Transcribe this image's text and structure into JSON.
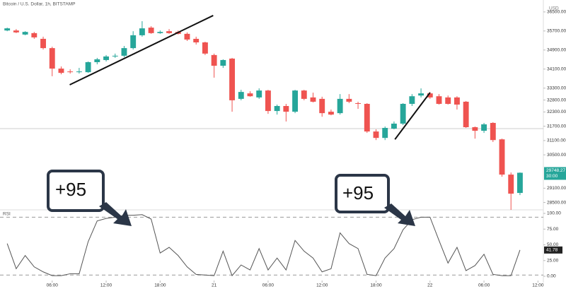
{
  "header": "Bitcoin / U.S. Dollar, 1h, BITSTAMP",
  "currency": "USD",
  "countdown": "30:00",
  "annotations": [
    {
      "text": "+95"
    },
    {
      "text": "+95"
    }
  ],
  "chart_data": [
    {
      "type": "candlestick",
      "up_color": "#26a69a",
      "down_color": "#ef5350",
      "x": [
        1,
        2,
        3,
        4,
        5,
        6,
        7,
        8,
        9,
        10,
        11,
        12,
        13,
        14,
        15,
        16,
        17,
        18,
        19,
        20,
        21,
        22,
        23,
        24,
        25,
        26,
        27,
        28,
        29,
        30,
        31,
        32,
        33,
        34,
        35,
        36,
        37,
        38,
        39,
        40,
        41,
        42,
        43,
        44,
        45,
        46,
        47,
        48,
        49,
        50,
        51,
        52,
        53,
        54,
        55,
        56,
        57,
        58
      ],
      "open": [
        35720,
        35720,
        35550,
        35610,
        35370,
        34980,
        34120,
        34000,
        33970,
        33970,
        34390,
        34480,
        34630,
        34660,
        34980,
        35520,
        35840,
        35610,
        35690,
        35660,
        35580,
        35370,
        35220,
        34690,
        34240,
        34540,
        32850,
        33080,
        32910,
        33200,
        32340,
        32550,
        32310,
        33200,
        32910,
        32850,
        32310,
        32250,
        32850,
        32670,
        32640,
        31480,
        31210,
        31600,
        31810,
        32640,
        32990,
        33080,
        32960,
        32910,
        32910,
        32730,
        31660,
        31510,
        31840,
        31150,
        29670,
        28900
      ],
      "high": [
        35840,
        35780,
        35690,
        35660,
        35460,
        35040,
        34210,
        34090,
        34150,
        34420,
        34570,
        34690,
        34750,
        35070,
        35690,
        36110,
        35900,
        35720,
        35780,
        35720,
        35640,
        35460,
        35250,
        34750,
        34510,
        34570,
        33230,
        33170,
        33290,
        33230,
        32610,
        32640,
        33230,
        33230,
        33110,
        32940,
        32400,
        33050,
        33050,
        32730,
        32670,
        31570,
        31690,
        31900,
        32670,
        33050,
        33290,
        33140,
        33050,
        32990,
        32960,
        32760,
        31690,
        31840,
        31870,
        31180,
        29760,
        29760
      ],
      "low": [
        35690,
        35610,
        35520,
        35370,
        34920,
        33800,
        33880,
        33910,
        33910,
        33940,
        34300,
        34420,
        34570,
        34600,
        34920,
        35460,
        35580,
        35580,
        35580,
        35550,
        35280,
        35130,
        34690,
        33740,
        34150,
        32310,
        32790,
        32940,
        32850,
        32220,
        32190,
        31900,
        32250,
        32790,
        32700,
        32100,
        32160,
        32190,
        32670,
        32430,
        31420,
        31120,
        31120,
        31570,
        31750,
        32550,
        32910,
        32850,
        32610,
        32610,
        32400,
        31630,
        31180,
        31420,
        31040,
        29580,
        28190,
        28810
      ],
      "close": [
        35810,
        35640,
        35660,
        35430,
        34980,
        34120,
        33940,
        33970,
        34000,
        34390,
        34510,
        34630,
        34660,
        34980,
        35520,
        35810,
        35610,
        35660,
        35610,
        35580,
        35340,
        35220,
        34750,
        34240,
        34480,
        32790,
        33140,
        32960,
        33200,
        32340,
        32550,
        32310,
        33200,
        32850,
        32730,
        32250,
        32190,
        32850,
        32730,
        32640,
        31480,
        31210,
        31630,
        31810,
        32640,
        32960,
        33080,
        32910,
        32640,
        32640,
        32610,
        31660,
        31510,
        31780,
        31120,
        29670,
        28870,
        29748.27
      ],
      "xlim": [
        0.2,
        60.6
      ],
      "xticks": [
        {
          "value": 6,
          "label": "06:00"
        },
        {
          "value": 12,
          "label": "12:00"
        },
        {
          "value": 18,
          "label": "18:00"
        },
        {
          "value": 24,
          "label": "21"
        },
        {
          "value": 30,
          "label": "06:00"
        },
        {
          "value": 36,
          "label": "12:00"
        },
        {
          "value": 42,
          "label": "18:00"
        },
        {
          "value": 48,
          "label": "22"
        },
        {
          "value": 54,
          "label": "06:00"
        },
        {
          "value": 60,
          "label": "12:00"
        }
      ],
      "ylim": [
        28190,
        37000
      ],
      "yticks": [
        {
          "value": 36500,
          "label": "36500.00"
        },
        {
          "value": 35700,
          "label": "35700.00"
        },
        {
          "value": 34900,
          "label": "34900.00"
        },
        {
          "value": 34100,
          "label": "34100.00"
        },
        {
          "value": 33300,
          "label": "33300.00"
        },
        {
          "value": 32800,
          "label": "32800.00"
        },
        {
          "value": 32300,
          "label": "32300.00"
        },
        {
          "value": 31700,
          "label": "31700.00"
        },
        {
          "value": 31100,
          "label": "31100.00"
        },
        {
          "value": 30500,
          "label": "30500.00"
        },
        {
          "value": 29100,
          "label": "29100.00"
        },
        {
          "value": 28500,
          "label": "28500.00"
        }
      ],
      "trend_lines": [
        {
          "x": [
            7.95,
            23.9
          ],
          "y": [
            33440,
            36350
          ]
        },
        {
          "x": [
            44.1,
            48.0
          ],
          "y": [
            31150,
            33110
          ]
        }
      ]
    },
    {
      "type": "line",
      "title": "RSI",
      "color": "#555555",
      "x": [
        1,
        2,
        3,
        4,
        5,
        6,
        7,
        8,
        9,
        10,
        11,
        12,
        13,
        14,
        15,
        16,
        17,
        18,
        19,
        20,
        21,
        22,
        23,
        24,
        25,
        26,
        27,
        28,
        29,
        30,
        31,
        32,
        33,
        34,
        35,
        36,
        37,
        38,
        39,
        40,
        41,
        42,
        43,
        44,
        45,
        46,
        47,
        48,
        49,
        50,
        51,
        52,
        53,
        54,
        55,
        56,
        57,
        58
      ],
      "values": [
        52,
        12,
        33,
        15,
        7,
        1,
        1,
        4,
        4,
        55,
        88,
        92,
        94,
        97,
        97,
        98,
        91,
        37,
        46,
        33,
        15,
        3,
        2,
        1,
        40,
        1,
        18,
        10,
        44,
        10,
        29,
        10,
        57,
        40,
        29,
        7,
        12,
        69,
        52,
        44,
        3,
        1,
        29,
        44,
        74,
        90,
        94,
        94,
        57,
        21,
        46,
        9,
        17,
        35,
        3,
        1,
        1,
        41.78
      ],
      "ylim": [
        0,
        100
      ],
      "yticks": [
        {
          "value": 100,
          "label": "100.00"
        },
        {
          "value": 75,
          "label": "75.00"
        },
        {
          "value": 50,
          "label": "50.00"
        },
        {
          "value": 25,
          "label": "25.00"
        },
        {
          "value": 0,
          "label": "0.00"
        }
      ],
      "reference_lines": [
        94,
        2
      ]
    }
  ]
}
